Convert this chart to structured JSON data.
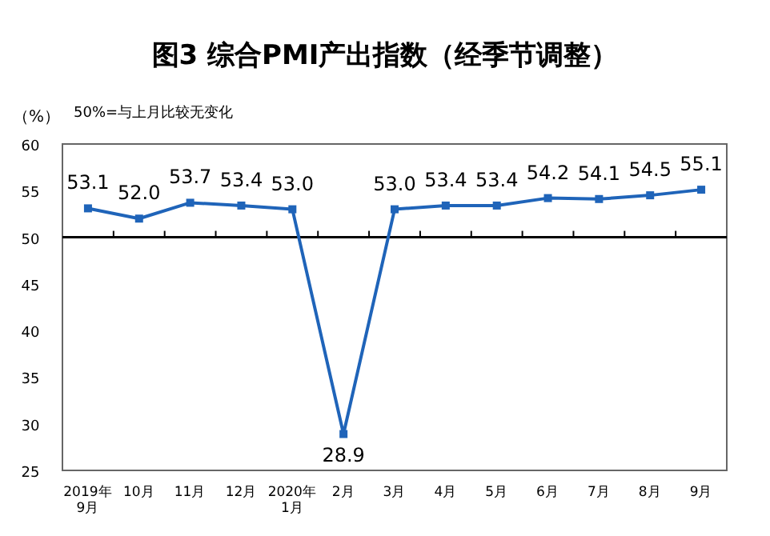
{
  "chart_data": {
    "type": "line",
    "title": "图3 综合PMI产出指数（经季节调整）",
    "ylabel": "（%）",
    "annotations": [
      "50%=与上月比较无变化"
    ],
    "categories": [
      "2019年\n9月",
      "10月",
      "11月",
      "12月",
      "2020年\n1月",
      "2月",
      "3月",
      "4月",
      "5月",
      "6月",
      "7月",
      "8月",
      "9月"
    ],
    "series": [
      {
        "color": "#1f64b9",
        "values": [
          53.1,
          52.0,
          53.7,
          53.4,
          53.0,
          28.9,
          53.0,
          53.4,
          53.4,
          54.2,
          54.1,
          54.5,
          55.1
        ],
        "value_labels": [
          "53.1",
          "52.0",
          "53.7",
          "53.4",
          "53.0",
          "28.9",
          "53.0",
          "53.4",
          "53.4",
          "54.2",
          "54.1",
          "54.5",
          "55.1"
        ]
      }
    ],
    "ylim": [
      25,
      60
    ],
    "yticks": [
      25,
      30,
      35,
      40,
      45,
      50,
      55,
      60
    ],
    "ref_lines": [
      {
        "axis": "y",
        "value": 50,
        "color": "#000000"
      }
    ],
    "marker": "square"
  }
}
